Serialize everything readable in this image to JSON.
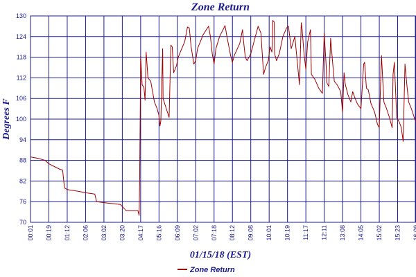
{
  "chart_data": {
    "type": "line",
    "title": "Zone Return",
    "xlabel": "01/15/18 (EST)",
    "ylabel": "Degrees F",
    "ylim": [
      70,
      130
    ],
    "yticks": [
      70,
      76,
      82,
      88,
      94,
      100,
      106,
      112,
      118,
      124,
      130
    ],
    "x_tick_labels": [
      "00:01",
      "00:19",
      "01:12",
      "02:06",
      "03:02",
      "03:20",
      "04:17",
      "05:16",
      "06:09",
      "07:02",
      "07:18",
      "08:12",
      "09:08",
      "10:01",
      "10:19",
      "11:17",
      "12:11",
      "13:08",
      "14:05",
      "15:02",
      "15:23",
      "16:09"
    ],
    "grid": true,
    "legend_position": "bottom-center",
    "series": [
      {
        "name": "Zone Return",
        "color": "#a00000",
        "points": [
          [
            0.0,
            89.0
          ],
          [
            0.4,
            88.6
          ],
          [
            0.8,
            88.0
          ],
          [
            1.0,
            87.0
          ],
          [
            1.3,
            86.2
          ],
          [
            1.6,
            85.4
          ],
          [
            1.75,
            85.2
          ],
          [
            1.85,
            80.0
          ],
          [
            2.0,
            79.5
          ],
          [
            2.6,
            79.0
          ],
          [
            3.0,
            78.6
          ],
          [
            3.5,
            78.2
          ],
          [
            3.6,
            76.0
          ],
          [
            4.2,
            75.6
          ],
          [
            4.9,
            75.2
          ],
          [
            5.2,
            73.4
          ],
          [
            5.6,
            73.4
          ],
          [
            5.85,
            73.4
          ],
          [
            5.92,
            72.0
          ],
          [
            5.95,
            84.0
          ],
          [
            6.0,
            118.0
          ],
          [
            6.08,
            110.0
          ],
          [
            6.18,
            109.2
          ],
          [
            6.24,
            105.5
          ],
          [
            6.3,
            119.5
          ],
          [
            6.4,
            112.0
          ],
          [
            6.55,
            111.0
          ],
          [
            6.75,
            105.0
          ],
          [
            6.9,
            103.0
          ],
          [
            7.0,
            101.0
          ],
          [
            7.05,
            98.0
          ],
          [
            7.1,
            99.5
          ],
          [
            7.2,
            120.5
          ],
          [
            7.22,
            106.0
          ],
          [
            7.4,
            103.0
          ],
          [
            7.55,
            100.5
          ],
          [
            7.65,
            121.5
          ],
          [
            7.72,
            121.0
          ],
          [
            7.8,
            113.5
          ],
          [
            7.95,
            115.5
          ],
          [
            8.05,
            118.0
          ],
          [
            8.2,
            120.0
          ],
          [
            8.4,
            122.5
          ],
          [
            8.55,
            126.8
          ],
          [
            8.65,
            126.5
          ],
          [
            8.75,
            121.0
          ],
          [
            8.9,
            116.0
          ],
          [
            9.0,
            117.0
          ],
          [
            9.1,
            120.5
          ],
          [
            9.4,
            124.5
          ],
          [
            9.7,
            127.0
          ],
          [
            9.8,
            124.0
          ],
          [
            9.9,
            119.0
          ],
          [
            10.0,
            116.0
          ],
          [
            10.1,
            120.5
          ],
          [
            10.3,
            124.0
          ],
          [
            10.6,
            127.2
          ],
          [
            10.7,
            124.0
          ],
          [
            10.9,
            118.5
          ],
          [
            11.0,
            116.5
          ],
          [
            11.1,
            118.5
          ],
          [
            11.4,
            122.0
          ],
          [
            11.55,
            126.0
          ],
          [
            11.6,
            123.0
          ],
          [
            11.7,
            118.0
          ],
          [
            11.8,
            117.0
          ],
          [
            12.0,
            119.0
          ],
          [
            12.2,
            123.0
          ],
          [
            12.4,
            127.0
          ],
          [
            12.55,
            125.0
          ],
          [
            12.7,
            113.0
          ],
          [
            12.8,
            115.0
          ],
          [
            12.95,
            117.0
          ],
          [
            13.05,
            121.0
          ],
          [
            13.15,
            119.5
          ],
          [
            13.2,
            128.7
          ],
          [
            13.28,
            128.2
          ],
          [
            13.3,
            119.0
          ],
          [
            13.4,
            117.0
          ],
          [
            13.55,
            119.0
          ],
          [
            13.75,
            124.0
          ],
          [
            13.95,
            126.5
          ],
          [
            14.05,
            127.0
          ],
          [
            14.1,
            125.0
          ],
          [
            14.2,
            120.5
          ],
          [
            14.4,
            124.0
          ],
          [
            14.5,
            118.5
          ],
          [
            14.65,
            110.0
          ],
          [
            14.75,
            128.0
          ],
          [
            14.8,
            126.0
          ],
          [
            14.9,
            119.0
          ],
          [
            15.0,
            114.5
          ],
          [
            15.1,
            122.5
          ],
          [
            15.25,
            126.0
          ],
          [
            15.3,
            113.0
          ],
          [
            15.5,
            111.5
          ],
          [
            15.7,
            109.0
          ],
          [
            15.9,
            107.5
          ],
          [
            16.0,
            125.0
          ],
          [
            16.1,
            116.0
          ],
          [
            16.15,
            110.5
          ],
          [
            16.25,
            109.5
          ],
          [
            16.35,
            123.5
          ],
          [
            16.45,
            117.0
          ],
          [
            16.55,
            111.0
          ],
          [
            16.7,
            110.0
          ],
          [
            16.9,
            108.0
          ],
          [
            17.0,
            102.0
          ],
          [
            17.08,
            113.5
          ],
          [
            17.15,
            110.0
          ],
          [
            17.3,
            107.0
          ],
          [
            17.45,
            105.0
          ],
          [
            17.55,
            108.0
          ],
          [
            17.65,
            106.5
          ],
          [
            17.8,
            104.5
          ],
          [
            18.0,
            103.0
          ],
          [
            18.15,
            116.0
          ],
          [
            18.2,
            116.5
          ],
          [
            18.3,
            109.0
          ],
          [
            18.4,
            108.5
          ],
          [
            18.55,
            104.5
          ],
          [
            18.75,
            102.0
          ],
          [
            18.9,
            98.5
          ],
          [
            19.0,
            97.5
          ],
          [
            19.12,
            118.5
          ],
          [
            19.25,
            105.0
          ],
          [
            19.4,
            103.0
          ],
          [
            19.55,
            100.5
          ],
          [
            19.7,
            97.5
          ],
          [
            19.75,
            113.0
          ],
          [
            19.82,
            116.5
          ],
          [
            19.95,
            100.5
          ],
          [
            20.1,
            99.0
          ],
          [
            20.2,
            97.5
          ],
          [
            20.3,
            93.5
          ],
          [
            20.4,
            116.0
          ],
          [
            20.5,
            110.0
          ],
          [
            20.6,
            105.0
          ],
          [
            20.75,
            103.0
          ],
          [
            20.9,
            100.5
          ],
          [
            21.0,
            99.0
          ],
          [
            21.1,
            105.0
          ],
          [
            21.25,
            104.0
          ],
          [
            21.4,
            101.0
          ],
          [
            21.55,
            98.8
          ],
          [
            21.7,
            99.0
          ]
        ]
      }
    ]
  }
}
